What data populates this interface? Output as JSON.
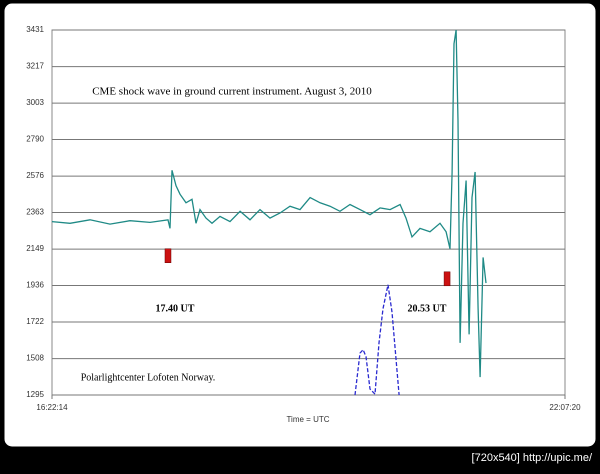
{
  "chart_data": {
    "type": "line",
    "title": "CME shock wave in ground current instrument.   August 3, 2010",
    "annotations": [
      "17.40 UT",
      "20.53 UT",
      "Polarlightcenter Lofoten Norway."
    ],
    "xlabel": "Time = UTC",
    "footer": "[720x540] http://upic.me/",
    "xlim": [
      16.3706,
      22.1222
    ],
    "xticks": [
      {
        "value": 16.3706,
        "label": "16:22:14"
      },
      {
        "value": 22.1222,
        "label": "22:07:20"
      }
    ],
    "ylim": [
      1295,
      3431
    ],
    "yticks": [
      1295,
      1508,
      1722,
      1936,
      2149,
      2363,
      2576,
      2790,
      3003,
      3217,
      3431
    ],
    "grid": true,
    "series": [
      {
        "color": "#1f8a86",
        "dash": false,
        "x": [
          16.371,
          16.572,
          16.797,
          17.021,
          17.245,
          17.469,
          17.671,
          17.694,
          17.716,
          17.761,
          17.806,
          17.873,
          17.94,
          17.985,
          18.03,
          18.097,
          18.165,
          18.254,
          18.366,
          18.479,
          18.591,
          18.703,
          18.815,
          18.927,
          19.039,
          19.151,
          19.264,
          19.376,
          19.488,
          19.6,
          19.712,
          19.824,
          19.936,
          20.049,
          20.161,
          20.273,
          20.34,
          20.407,
          20.497,
          20.609,
          20.721,
          20.789,
          20.833,
          20.856,
          20.878,
          20.901,
          20.923,
          20.946,
          20.979,
          21.013,
          21.047,
          21.08,
          21.114,
          21.148,
          21.17,
          21.204,
          21.237
        ],
        "values": [
          2310,
          2300,
          2320,
          2295,
          2315,
          2305,
          2320,
          2270,
          2610,
          2520,
          2470,
          2420,
          2440,
          2300,
          2380,
          2330,
          2300,
          2340,
          2310,
          2370,
          2320,
          2380,
          2330,
          2360,
          2400,
          2380,
          2450,
          2420,
          2400,
          2370,
          2410,
          2380,
          2350,
          2390,
          2380,
          2410,
          2330,
          2220,
          2270,
          2250,
          2300,
          2250,
          2150,
          2600,
          3350,
          3431,
          2900,
          1600,
          2300,
          2550,
          1650,
          2450,
          2600,
          1800,
          1400,
          2100,
          1950
        ]
      },
      {
        "color": "#2a2ad0",
        "dash": true,
        "x": [
          19.768,
          19.824,
          19.858,
          19.891,
          19.936,
          19.992,
          20.037,
          20.082,
          20.138,
          20.183,
          20.228,
          20.262
        ],
        "values": [
          1295,
          1540,
          1560,
          1520,
          1330,
          1300,
          1600,
          1800,
          1940,
          1780,
          1500,
          1295
        ]
      }
    ],
    "markers": {
      "color": "#cc1111",
      "x": [
        17.671,
        20.8
      ],
      "values": [
        2110,
        1975
      ]
    }
  }
}
